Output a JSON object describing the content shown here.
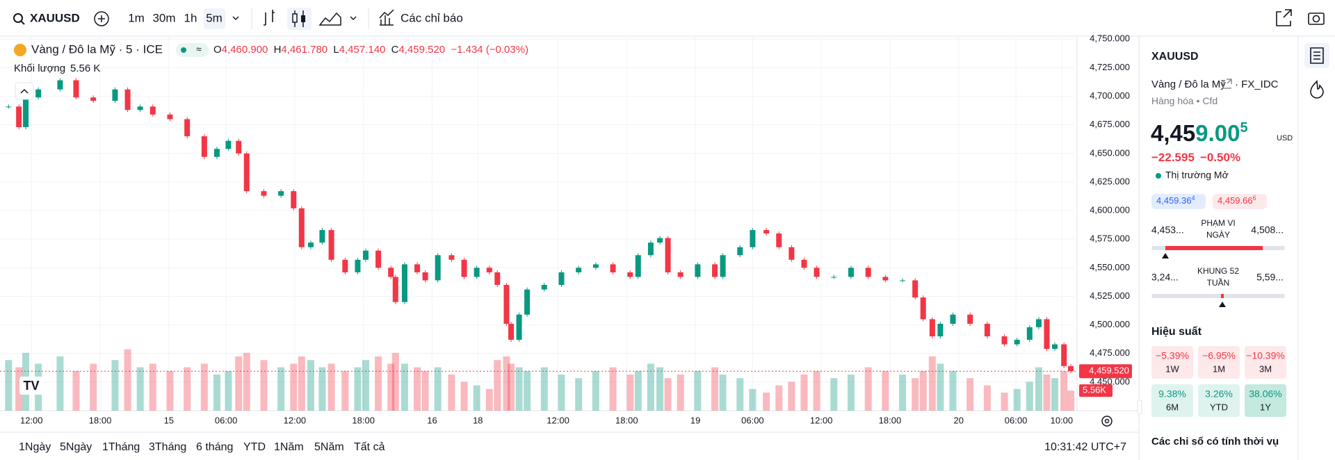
{
  "toolbar": {
    "symbol": "XAUUSD",
    "intervals": [
      "1m",
      "30m",
      "1h",
      "5m"
    ],
    "indicators": "Các chỉ báo"
  },
  "legend": {
    "title": "Vàng / Đô la Mỹ · 5 · ICE",
    "ohlc": [
      {
        "key": "O",
        "value": "4,460.900"
      },
      {
        "key": "H",
        "value": "4,461.780"
      },
      {
        "key": "L",
        "value": "4,457.140"
      },
      {
        "key": "C",
        "value": "4,459.520"
      }
    ],
    "change": "−1.434 (−0.03%)",
    "volume_label": "Khối lượng",
    "volume_value": "5.56 K"
  },
  "chart_data": {
    "type": "candlestick",
    "x": [
      -2.0,
      -1.1,
      -0.5,
      0.6,
      2.5,
      3.9,
      5.4,
      7.3,
      8.4,
      9.5,
      10.6,
      12.1,
      13.6,
      15.1,
      16.2,
      17.2,
      18.1,
      18.8,
      20.3,
      21.8,
      22.9,
      23.6,
      24.4,
      25.4,
      26.2,
      27.4,
      28.5,
      29.2,
      30.3,
      31.4,
      31.8,
      32.6,
      33.7,
      34.4,
      35.5,
      36.7,
      37.8,
      38.9,
      40.0,
      40.7,
      41.5,
      41.9,
      42.6,
      43.3,
      44.8,
      46.3,
      47.8,
      49.3,
      50.8,
      52.3,
      53.0,
      54.1,
      54.9,
      55.6,
      56.7,
      58.2,
      59.7,
      60.4,
      61.9,
      63.0,
      64.2,
      65.3,
      66.4,
      67.5,
      68.6,
      70.1,
      71.6,
      73.1,
      74.6,
      76.1,
      77.2,
      77.9,
      78.7,
      79.4,
      80.5,
      82.0,
      83.5,
      85.0,
      86.1,
      87.2,
      88.0,
      88.7,
      89.4,
      90.2,
      90.8
    ],
    "values": [
      4691,
      4673,
      4699,
      4706,
      4714,
      4699,
      4696,
      4706,
      4688,
      4691,
      4684,
      4680,
      4665,
      4647,
      4654,
      4661,
      4650,
      4617,
      4613,
      4617,
      4602,
      4568,
      4572,
      4583,
      4557,
      4546,
      4557,
      4565,
      4550,
      4542,
      4520,
      4553,
      4546,
      4539,
      4561,
      4557,
      4542,
      4550,
      4546,
      4535,
      4501,
      4487,
      4509,
      4531,
      4535,
      4546,
      4550,
      4553,
      4546,
      4542,
      4561,
      4572,
      4576,
      4546,
      4542,
      4553,
      4542,
      4561,
      4568,
      4583,
      4580,
      4568,
      4557,
      4550,
      4542,
      4542,
      4550,
      4542,
      4539,
      4539,
      4524,
      4505,
      4490,
      4501,
      4509,
      4501,
      4490,
      4483,
      4487,
      4498,
      4505,
      4479,
      4483,
      4464,
      4459.52
    ],
    "volume": [
      14,
      12,
      16,
      13,
      15,
      11,
      13,
      14,
      17,
      12,
      13,
      11,
      12,
      13,
      10,
      11,
      15,
      16,
      14,
      12,
      13,
      15,
      14,
      12,
      13,
      11,
      12,
      14,
      15,
      13,
      16,
      13,
      12,
      11,
      12,
      10,
      8,
      7,
      6,
      14,
      15,
      13,
      12,
      11,
      12,
      10,
      9,
      11,
      12,
      10,
      11,
      13,
      12,
      9,
      10,
      11,
      12,
      10,
      9,
      6,
      5,
      7,
      8,
      10,
      11,
      9,
      10,
      12,
      11,
      10,
      9,
      11,
      15,
      13,
      11,
      9,
      7,
      5,
      6,
      8,
      12,
      10,
      9,
      11,
      5.56
    ],
    "xlim": [
      -2.75,
      91.1
    ],
    "xticks": [
      {
        "value": 0,
        "label": "12:00"
      },
      {
        "value": 6,
        "label": "18:00"
      },
      {
        "value": 12,
        "label": "15"
      },
      {
        "value": 17,
        "label": "06:00"
      },
      {
        "value": 23,
        "label": "12:00"
      },
      {
        "value": 29,
        "label": "18:00"
      },
      {
        "value": 35,
        "label": "16"
      },
      {
        "value": 39,
        "label": "18"
      },
      {
        "value": 46,
        "label": "12:00"
      },
      {
        "value": 52,
        "label": "18:00"
      },
      {
        "value": 58,
        "label": "19"
      },
      {
        "value": 63,
        "label": "06:00"
      },
      {
        "value": 69,
        "label": "12:00"
      },
      {
        "value": 75,
        "label": "18:00"
      },
      {
        "value": 81,
        "label": "20"
      },
      {
        "value": 86,
        "label": "06:00"
      },
      {
        "value": 90,
        "label": "10:00"
      }
    ],
    "ylim": [
      4425,
      4752
    ],
    "yticks": [
      {
        "value": 4750,
        "label": "4,750.000"
      },
      {
        "value": 4725,
        "label": "4,725.000"
      },
      {
        "value": 4700,
        "label": "4,700.000"
      },
      {
        "value": 4675,
        "label": "4,675.000"
      },
      {
        "value": 4650,
        "label": "4,650.000"
      },
      {
        "value": 4625,
        "label": "4,625.000"
      },
      {
        "value": 4600,
        "label": "4,600.000"
      },
      {
        "value": 4575,
        "label": "4,575.000"
      },
      {
        "value": 4550,
        "label": "4,550.000"
      },
      {
        "value": 4525,
        "label": "4,525.000"
      },
      {
        "value": 4500,
        "label": "4,500.000"
      },
      {
        "value": 4475,
        "label": "4,475.000"
      },
      {
        "value": 4450,
        "label": "4,450.000"
      }
    ],
    "vlim": [
      0,
      25
    ],
    "grid": true,
    "last_price": {
      "value": 4459.52,
      "label": "4,459.520"
    },
    "last_volume": {
      "value": 5.56,
      "label": "5.56K"
    },
    "up_color": "#089981",
    "down_color": "#f23645"
  },
  "range_buttons": [
    "1Ngày",
    "5Ngày",
    "1Tháng",
    "3Tháng",
    "6 tháng",
    "YTD",
    "1Năm",
    "5Năm",
    "Tất cả"
  ],
  "clock": "10:31:42 UTC+7",
  "panel": {
    "symbol": "XAUUSD",
    "name": "Vàng / Đô la Mỹ",
    "exchange": "FX_IDC",
    "category": "Hàng hóa",
    "kind": "Cfd",
    "price_main": "4,45",
    "price_accent": "9.00",
    "price_sup": "5",
    "currency": "USD",
    "change": "−22.595",
    "change_pct": "−0.50%",
    "status": "Thị trường Mở",
    "bid": "4,459.36",
    "bid_sup": "4",
    "ask": "4,459.66",
    "ask_sup": "6",
    "day_low": "4,453...",
    "day_label": [
      "PHẠM VI",
      "NGÀY"
    ],
    "day_high": "4,508...",
    "year_low": "3,24...",
    "year_label": [
      "KHUNG 52",
      "TUẦN"
    ],
    "year_high": "5,59...",
    "performance_title": "Hiệu suất",
    "performance": [
      {
        "value": "−5.39%",
        "period": "1W"
      },
      {
        "value": "−6.95%",
        "period": "1M"
      },
      {
        "value": "−10.39%",
        "period": "3M"
      },
      {
        "value": "9.38%",
        "period": "6M"
      },
      {
        "value": "3.26%",
        "period": "YTD"
      },
      {
        "value": "38.06%",
        "period": "1Y"
      }
    ],
    "seasonal_title": "Các chỉ số có tính thời vụ"
  }
}
